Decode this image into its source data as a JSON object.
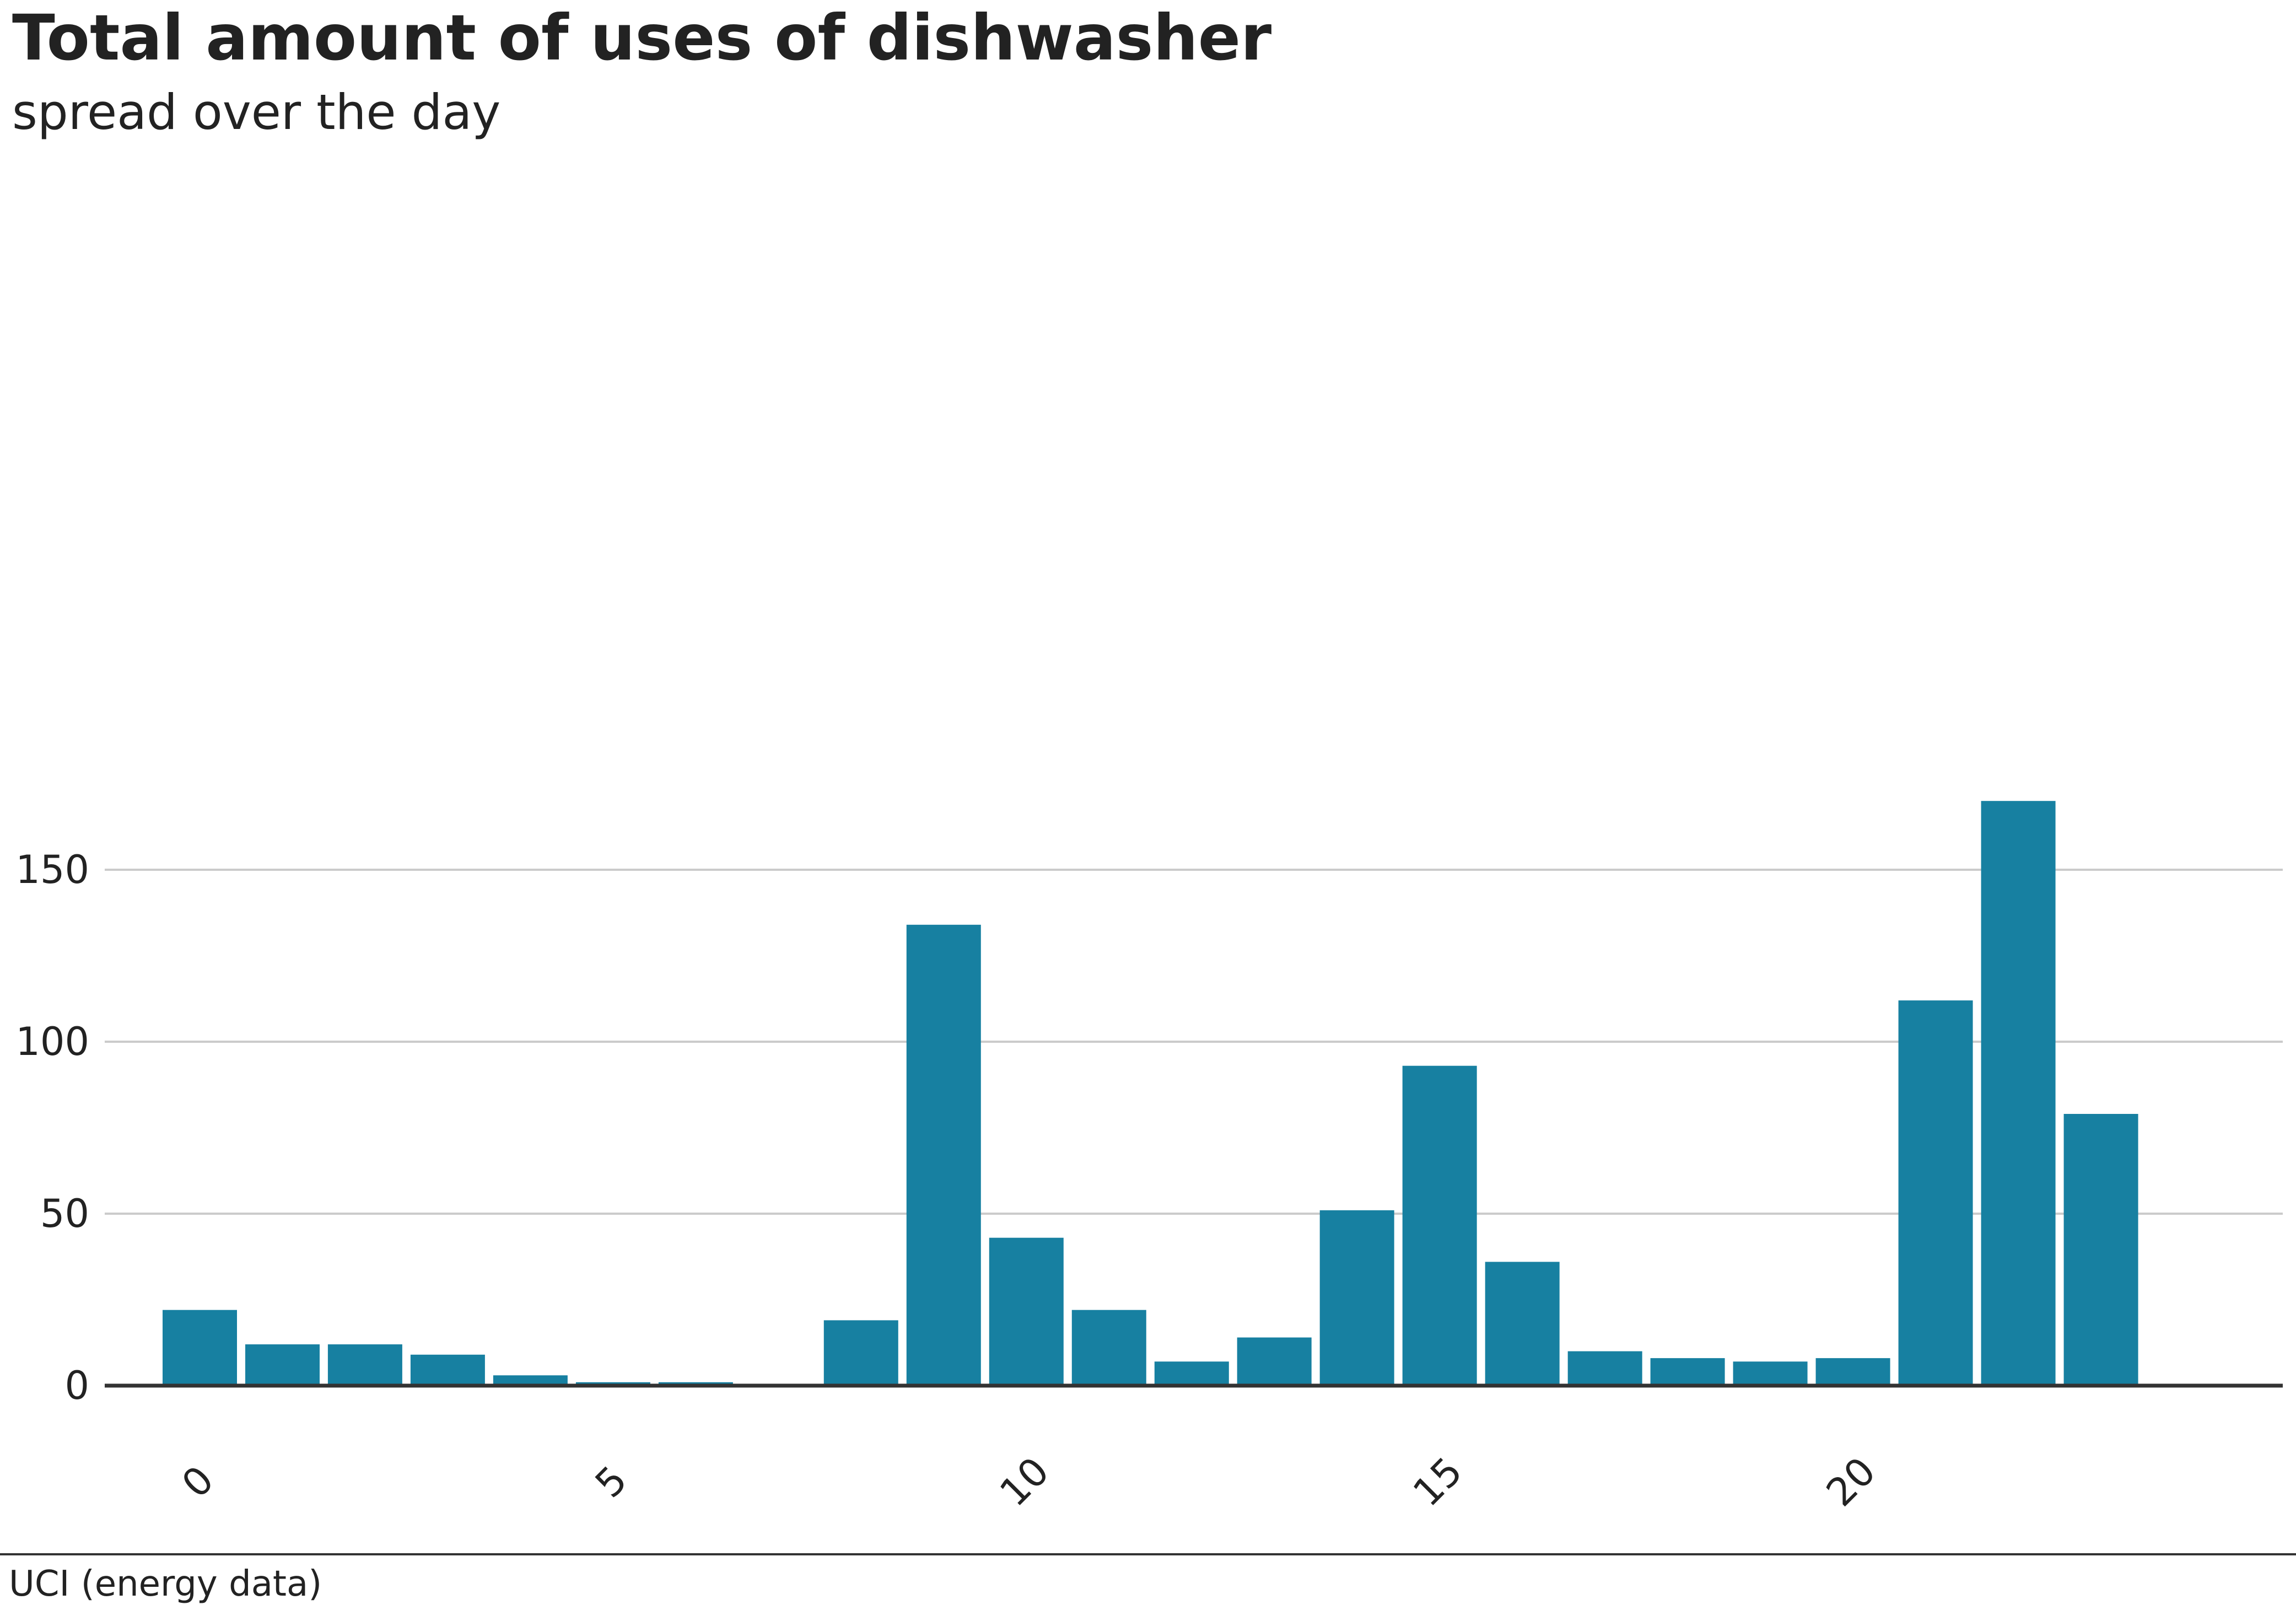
{
  "chart_data": {
    "type": "bar",
    "title": "Total amount of uses of dishwasher",
    "subtitle": "spread over the day",
    "source": "UCI (energy data)",
    "categories": [
      0,
      1,
      2,
      3,
      4,
      5,
      6,
      7,
      8,
      9,
      10,
      11,
      12,
      13,
      14,
      15,
      16,
      17,
      18,
      19,
      20,
      21,
      22,
      23
    ],
    "values": [
      22,
      12,
      12,
      9,
      3,
      1,
      1,
      0,
      19,
      134,
      43,
      22,
      7,
      14,
      51,
      93,
      36,
      10,
      8,
      7,
      8,
      112,
      170,
      79
    ],
    "x_ticks": [
      0,
      5,
      10,
      15,
      20
    ],
    "x_tick_labels": [
      "0",
      "5",
      "10",
      "15",
      "20"
    ],
    "y_ticks": [
      0,
      50,
      100,
      150
    ],
    "y_tick_labels": [
      "0",
      "50",
      "100",
      "150"
    ],
    "xlabel": "",
    "ylabel": "",
    "xlim": [
      -1.15,
      25.2
    ],
    "ylim": [
      0,
      180
    ],
    "grid": "horizontal",
    "legend": "none",
    "colors": {
      "bar": "#1780a1",
      "grid": "#cbcbcb",
      "baseline": "#333333",
      "text": "#222222"
    }
  }
}
